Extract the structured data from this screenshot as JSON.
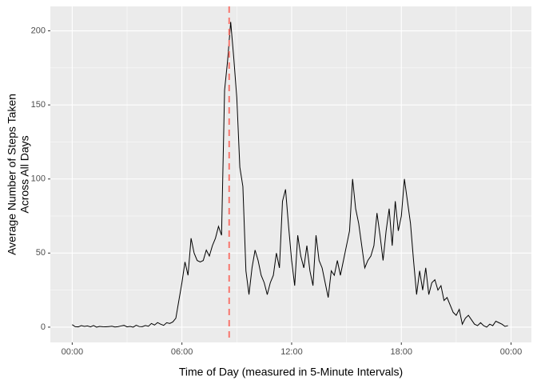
{
  "chart_data": {
    "type": "line",
    "x_label": "Time of Day (measured in 5-Minute Intervals)",
    "y_label": [
      "Average Number of Steps Taken",
      "Across All Days"
    ],
    "x": [
      0,
      10,
      20,
      30,
      40,
      50,
      60,
      70,
      80,
      90,
      100,
      110,
      120,
      130,
      140,
      150,
      160,
      170,
      180,
      190,
      200,
      210,
      220,
      230,
      240,
      250,
      260,
      270,
      280,
      290,
      300,
      310,
      320,
      330,
      340,
      350,
      360,
      370,
      380,
      390,
      400,
      410,
      420,
      430,
      440,
      450,
      460,
      470,
      480,
      490,
      500,
      510,
      520,
      530,
      540,
      550,
      560,
      570,
      580,
      590,
      600,
      610,
      620,
      630,
      640,
      650,
      660,
      670,
      680,
      690,
      700,
      710,
      720,
      730,
      740,
      750,
      760,
      770,
      780,
      790,
      800,
      810,
      820,
      830,
      840,
      850,
      860,
      870,
      880,
      890,
      900,
      910,
      920,
      930,
      940,
      950,
      960,
      970,
      980,
      990,
      1000,
      1010,
      1020,
      1030,
      1040,
      1050,
      1060,
      1070,
      1080,
      1090,
      1100,
      1110,
      1120,
      1130,
      1140,
      1150,
      1160,
      1170,
      1180,
      1190,
      1200,
      1210,
      1220,
      1230,
      1240,
      1250,
      1260,
      1270,
      1280,
      1290,
      1300,
      1310,
      1320,
      1330,
      1340,
      1350,
      1360,
      1370,
      1380,
      1390,
      1400,
      1410,
      1420,
      1430
    ],
    "values": [
      1.7,
      0.3,
      0.2,
      1.0,
      0.5,
      0.8,
      0.2,
      1.1,
      0,
      0.5,
      0.3,
      0.2,
      0.4,
      0.6,
      0.1,
      0.3,
      0.8,
      1.2,
      0.2,
      0.5,
      0,
      1.3,
      0.4,
      0.3,
      1.1,
      0.6,
      2.5,
      1.4,
      3.1,
      2.0,
      1.2,
      3.0,
      2.5,
      3.5,
      6,
      18,
      30,
      44,
      35,
      60,
      50,
      45,
      44,
      45,
      52,
      48,
      55,
      60,
      68,
      62,
      160,
      180,
      206,
      182,
      155,
      108,
      95,
      38,
      22,
      40,
      52,
      45,
      35,
      30,
      22,
      30,
      35,
      50,
      40,
      85,
      93,
      68,
      45,
      28,
      62,
      48,
      40,
      55,
      38,
      28,
      62,
      45,
      40,
      30,
      20,
      38,
      35,
      45,
      35,
      45,
      55,
      65,
      100,
      80,
      70,
      55,
      40,
      45,
      48,
      55,
      77,
      62,
      45,
      65,
      80,
      55,
      85,
      65,
      75,
      100,
      85,
      70,
      45,
      22,
      38,
      25,
      40,
      22,
      30,
      32,
      25,
      28,
      18,
      20,
      15,
      10,
      8,
      12,
      2,
      6,
      8,
      5,
      2,
      1,
      3,
      1,
      0,
      2,
      1,
      4,
      3,
      2,
      0.5,
      1
    ],
    "color": "#000000",
    "vline": 515,
    "vline_color": "#f8766d",
    "xlim": [
      -71.75,
      1506.75
    ],
    "xticks": [
      {
        "value": 0,
        "label": "00:00"
      },
      {
        "value": 360,
        "label": "06:00"
      },
      {
        "value": 720,
        "label": "12:00"
      },
      {
        "value": 1080,
        "label": "18:00"
      },
      {
        "value": 1440,
        "label": "00:00"
      }
    ],
    "ylim": [
      -10.3,
      216.5
    ],
    "yticks": [
      0,
      50,
      100,
      150,
      200
    ],
    "grid": true
  }
}
